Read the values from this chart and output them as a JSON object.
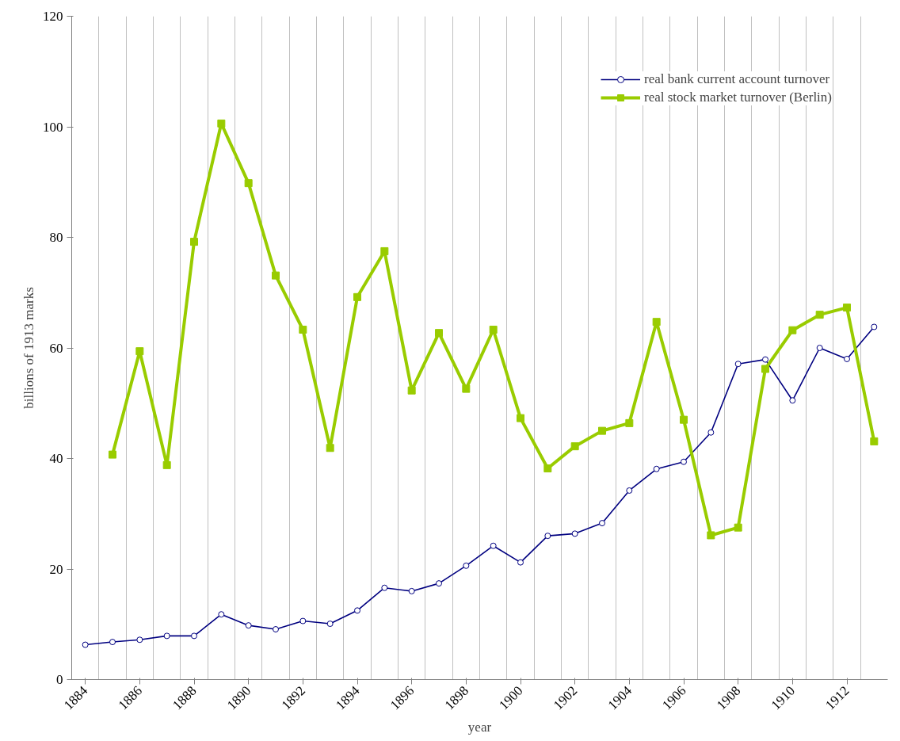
{
  "chart_data": {
    "type": "line",
    "xlabel": "year",
    "ylabel": "billions of 1913 marks",
    "categories": [
      "1884",
      null,
      "1886",
      null,
      "1888",
      null,
      "1890",
      null,
      "1892",
      null,
      "1894",
      null,
      "1896",
      null,
      "1898",
      null,
      "1900",
      null,
      "1902",
      null,
      "1904",
      null,
      "1906",
      null,
      "1908",
      null,
      "1910",
      null,
      "1912",
      null
    ],
    "series": [
      {
        "name": "real bank current account turnover",
        "color": "#000080",
        "marker": "circle",
        "values": [
          6.3,
          6.8,
          7.2,
          7.9,
          7.9,
          11.8,
          9.8,
          9.1,
          10.6,
          10.1,
          12.5,
          16.6,
          16.0,
          17.4,
          20.6,
          24.2,
          21.2,
          26.0,
          26.4,
          28.3,
          34.2,
          38.1,
          39.4,
          44.7,
          57.1,
          57.9,
          50.5,
          60.0,
          58.0,
          63.8
        ]
      },
      {
        "name": "real stock market turnover (Berlin)",
        "color": "#99cc00",
        "marker": "square",
        "values": [
          null,
          40.7,
          59.4,
          38.8,
          79.2,
          100.6,
          89.8,
          73.1,
          63.3,
          41.9,
          69.2,
          77.5,
          52.3,
          62.7,
          52.6,
          63.3,
          47.3,
          38.2,
          42.2,
          45.0,
          46.4,
          64.7,
          47.0,
          26.1,
          27.5,
          56.2,
          63.2,
          66.0,
          67.3,
          43.1
        ]
      }
    ],
    "ylim": [
      0,
      120
    ],
    "yticks": [
      0,
      20,
      40,
      60,
      80,
      100,
      120
    ],
    "grid": "x",
    "legend": "top right",
    "line_style": "solid"
  }
}
